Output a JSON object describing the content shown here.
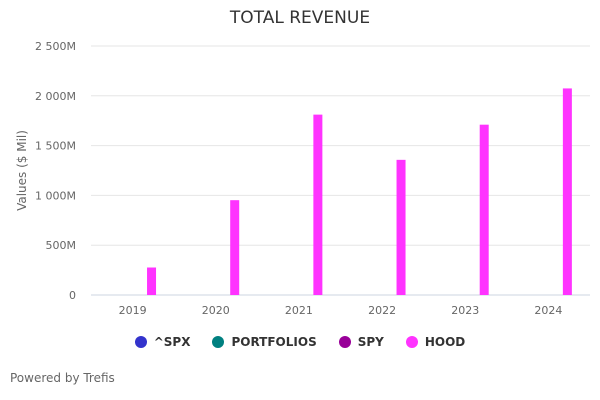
{
  "chart_data": {
    "type": "bar",
    "title": "TOTAL REVENUE",
    "ylabel": "Values ($ Mil)",
    "xlabel": "",
    "ylim": [
      0,
      2500
    ],
    "yticks": [
      0,
      500,
      1000,
      1500,
      2000,
      2500
    ],
    "ytick_labels": [
      "0",
      "500M",
      "1 000M",
      "1 500M",
      "2 000M",
      "2 500M"
    ],
    "categories": [
      "2019",
      "2020",
      "2021",
      "2022",
      "2023",
      "2024"
    ],
    "grid": true,
    "legend_position": "bottom",
    "series": [
      {
        "name": "^SPX",
        "color": "#3333cc",
        "values": [
          null,
          null,
          null,
          null,
          null,
          null
        ]
      },
      {
        "name": "PORTFOLIOS",
        "color": "#008080",
        "values": [
          null,
          null,
          null,
          null,
          null,
          null
        ]
      },
      {
        "name": "SPY",
        "color": "#990099",
        "values": [
          null,
          null,
          null,
          null,
          null,
          null
        ]
      },
      {
        "name": "HOOD",
        "color": "#ff33ff",
        "values": [
          276,
          952,
          1811,
          1357,
          1710,
          2074
        ]
      }
    ]
  },
  "footer": {
    "credit": "Powered by Trefis"
  }
}
